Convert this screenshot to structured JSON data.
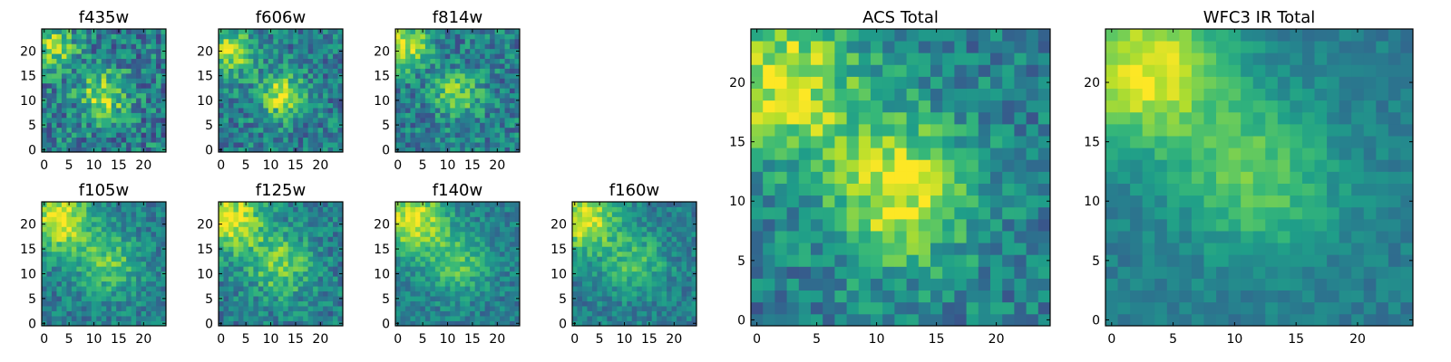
{
  "colormap": "viridis",
  "colors": {
    "frame": "#000000",
    "background": "#ffffff"
  },
  "chart_data": [
    {
      "type": "heatmap",
      "title": "f435w",
      "grid": [
        25,
        25
      ],
      "xlim": [
        0,
        24
      ],
      "ylim": [
        0,
        24
      ],
      "xticks": [
        0,
        5,
        10,
        15,
        20
      ],
      "yticks": [
        0,
        5,
        10,
        15,
        20
      ],
      "grid_lines": false,
      "features": [
        {
          "x": 2,
          "y": 21,
          "level": 0.75
        },
        {
          "x": 12,
          "y": 11,
          "level": 0.9
        }
      ],
      "noise": 0.35
    },
    {
      "type": "heatmap",
      "title": "f606w",
      "grid": [
        25,
        25
      ],
      "xlim": [
        0,
        24
      ],
      "ylim": [
        0,
        24
      ],
      "xticks": [
        0,
        5,
        10,
        15,
        20
      ],
      "yticks": [
        0,
        5,
        10,
        15,
        20
      ],
      "grid_lines": false,
      "features": [
        {
          "x": 2,
          "y": 20,
          "level": 0.85
        },
        {
          "x": 12,
          "y": 11,
          "level": 0.85
        }
      ],
      "noise": 0.3
    },
    {
      "type": "heatmap",
      "title": "f814w",
      "grid": [
        25,
        25
      ],
      "xlim": [
        0,
        24
      ],
      "ylim": [
        0,
        24
      ],
      "xticks": [
        0,
        5,
        10,
        15,
        20
      ],
      "yticks": [
        0,
        5,
        10,
        15,
        20
      ],
      "grid_lines": false,
      "features": [
        {
          "x": 2,
          "y": 21,
          "level": 0.95
        },
        {
          "x": 12,
          "y": 11,
          "level": 0.7
        }
      ],
      "noise": 0.3
    },
    {
      "type": "heatmap",
      "title": "f105w",
      "grid": [
        25,
        25
      ],
      "xlim": [
        0,
        24
      ],
      "ylim": [
        0,
        24
      ],
      "xticks": [
        0,
        5,
        10,
        15,
        20
      ],
      "yticks": [
        0,
        5,
        10,
        15,
        20
      ],
      "grid_lines": false,
      "features": [
        {
          "x": 3,
          "y": 21,
          "level": 1.0
        },
        {
          "x": 13,
          "y": 12,
          "level": 0.6
        }
      ],
      "noise": 0.22
    },
    {
      "type": "heatmap",
      "title": "f125w",
      "grid": [
        25,
        25
      ],
      "xlim": [
        0,
        24
      ],
      "ylim": [
        0,
        24
      ],
      "xticks": [
        0,
        5,
        10,
        15,
        20
      ],
      "yticks": [
        0,
        5,
        10,
        15,
        20
      ],
      "grid_lines": false,
      "features": [
        {
          "x": 2,
          "y": 21,
          "level": 1.0
        },
        {
          "x": 12,
          "y": 12,
          "level": 0.7
        }
      ],
      "noise": 0.25
    },
    {
      "type": "heatmap",
      "title": "f140w",
      "grid": [
        25,
        25
      ],
      "xlim": [
        0,
        24
      ],
      "ylim": [
        0,
        24
      ],
      "xticks": [
        0,
        5,
        10,
        15,
        20
      ],
      "yticks": [
        0,
        5,
        10,
        15,
        20
      ],
      "grid_lines": false,
      "features": [
        {
          "x": 3,
          "y": 21,
          "level": 1.0
        },
        {
          "x": 12,
          "y": 12,
          "level": 0.55
        }
      ],
      "noise": 0.2
    },
    {
      "type": "heatmap",
      "title": "f160w",
      "grid": [
        25,
        25
      ],
      "xlim": [
        0,
        24
      ],
      "ylim": [
        0,
        24
      ],
      "xticks": [
        0,
        5,
        10,
        15,
        20
      ],
      "yticks": [
        0,
        5,
        10,
        15,
        20
      ],
      "grid_lines": false,
      "features": [
        {
          "x": 2,
          "y": 21,
          "level": 1.0
        },
        {
          "x": 12,
          "y": 12,
          "level": 0.5
        }
      ],
      "noise": 0.2
    },
    {
      "type": "heatmap",
      "title": "ACS Total",
      "grid": [
        25,
        25
      ],
      "xlim": [
        0,
        24
      ],
      "ylim": [
        0,
        24
      ],
      "xticks": [
        0,
        5,
        10,
        15,
        20
      ],
      "yticks": [
        0,
        5,
        10,
        15,
        20
      ],
      "grid_lines": false,
      "features": [
        {
          "x": 2,
          "y": 20,
          "level": 0.95
        },
        {
          "x": 12,
          "y": 11,
          "level": 0.95
        }
      ],
      "noise": 0.25
    },
    {
      "type": "heatmap",
      "title": "WFC3 IR Total",
      "grid": [
        25,
        25
      ],
      "xlim": [
        0,
        24
      ],
      "ylim": [
        0,
        24
      ],
      "xticks": [
        0,
        5,
        10,
        15,
        20
      ],
      "yticks": [
        0,
        5,
        10,
        15,
        20
      ],
      "grid_lines": false,
      "features": [
        {
          "x": 3,
          "y": 21,
          "level": 1.0
        },
        {
          "x": 12,
          "y": 12,
          "level": 0.6
        }
      ],
      "noise": 0.12
    }
  ]
}
